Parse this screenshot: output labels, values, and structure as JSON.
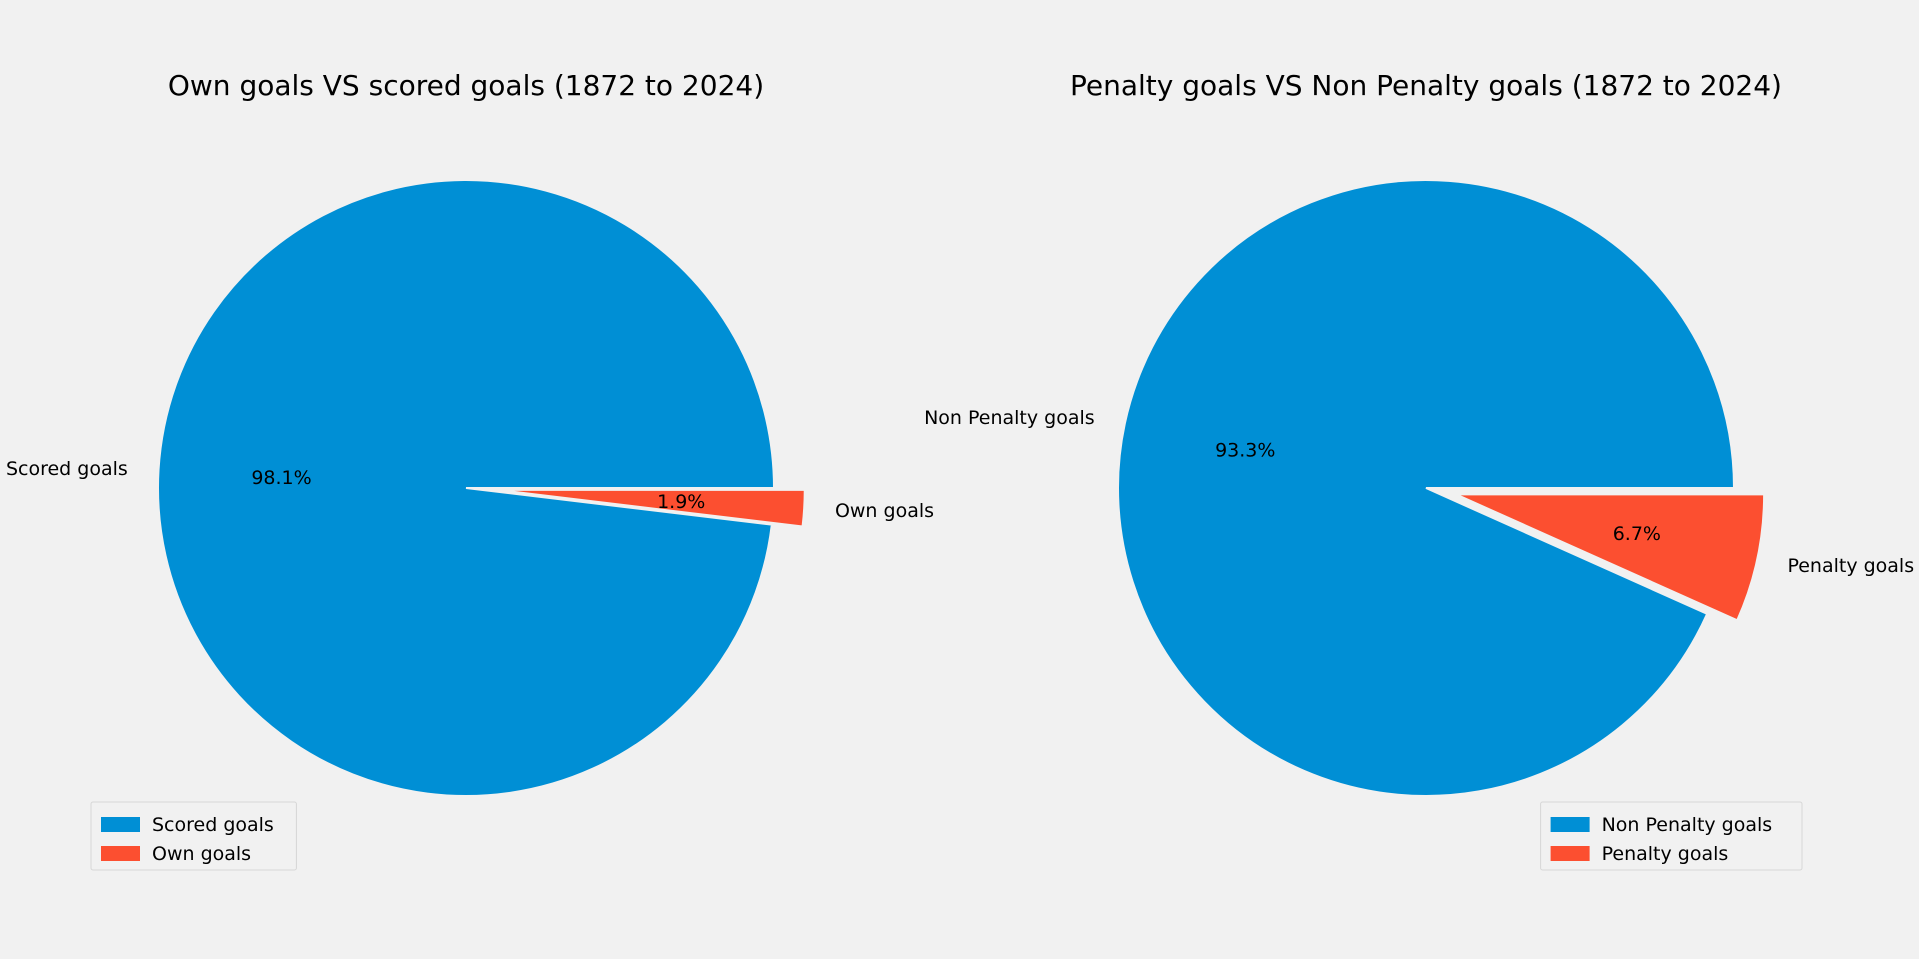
{
  "chart_data": [
    {
      "type": "pie",
      "title": "Own goals VS scored goals (1872 to 2024)",
      "categories": [
        "Scored goals",
        "Own goals"
      ],
      "values": [
        98.1,
        1.9
      ],
      "value_labels": [
        "98.1%",
        "1.9%"
      ],
      "explode": [
        0,
        0.1
      ],
      "colors": [
        "#008fd5",
        "#fc4f30"
      ],
      "legend": {
        "placement": "lower-left",
        "entries": [
          "Scored goals",
          "Own goals"
        ]
      }
    },
    {
      "type": "pie",
      "title": "Penalty goals VS Non Penalty goals (1872 to 2024)",
      "categories": [
        "Non Penalty goals",
        "Penalty goals"
      ],
      "values": [
        93.3,
        6.7
      ],
      "value_labels": [
        "93.3%",
        "6.7%"
      ],
      "explode": [
        0,
        0.1
      ],
      "colors": [
        "#008fd5",
        "#fc4f30"
      ],
      "legend": {
        "placement": "lower-right",
        "entries": [
          "Non Penalty goals",
          "Penalty goals"
        ]
      }
    }
  ]
}
